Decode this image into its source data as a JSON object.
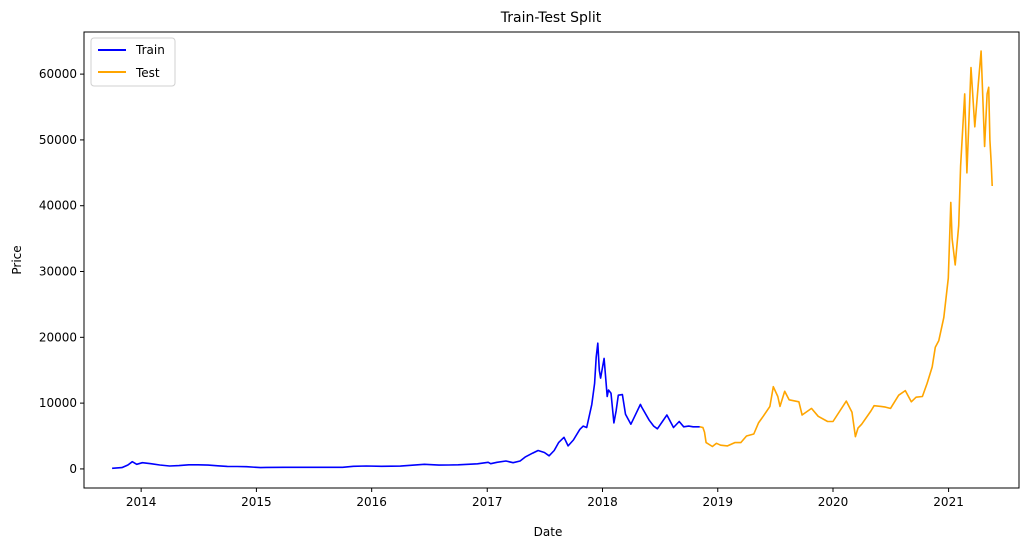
{
  "chart_data": {
    "type": "line",
    "title": "Train-Test Split",
    "xlabel": "Date",
    "ylabel": "Price",
    "xlim": [
      "2013-07-04",
      "2021-08-12"
    ],
    "ylim": [
      -2900,
      66400
    ],
    "x_ticks": [
      "2014",
      "2015",
      "2016",
      "2017",
      "2018",
      "2019",
      "2020",
      "2021"
    ],
    "y_ticks": [
      0,
      10000,
      20000,
      30000,
      40000,
      50000,
      60000
    ],
    "grid": false,
    "legend": "top-left",
    "series": [
      {
        "name": "Train",
        "color": "#0000ff",
        "x": [
          "2013-10-01",
          "2013-11-01",
          "2013-11-20",
          "2013-12-04",
          "2013-12-18",
          "2014-01-05",
          "2014-02-01",
          "2014-03-01",
          "2014-04-01",
          "2014-05-01",
          "2014-06-01",
          "2014-07-01",
          "2014-08-01",
          "2014-09-01",
          "2014-10-01",
          "2014-11-01",
          "2014-12-01",
          "2015-01-14",
          "2015-02-01",
          "2015-04-01",
          "2015-06-01",
          "2015-08-01",
          "2015-10-01",
          "2015-11-04",
          "2015-12-15",
          "2016-02-01",
          "2016-04-01",
          "2016-06-16",
          "2016-07-01",
          "2016-08-01",
          "2016-09-01",
          "2016-10-01",
          "2016-11-01",
          "2016-12-01",
          "2017-01-04",
          "2017-01-12",
          "2017-02-01",
          "2017-03-01",
          "2017-03-24",
          "2017-04-15",
          "2017-05-01",
          "2017-05-25",
          "2017-06-11",
          "2017-07-01",
          "2017-07-16",
          "2017-08-01",
          "2017-08-15",
          "2017-09-01",
          "2017-09-14",
          "2017-10-01",
          "2017-10-21",
          "2017-11-01",
          "2017-11-12",
          "2017-11-28",
          "2017-12-07",
          "2017-12-12",
          "2017-12-17",
          "2017-12-22",
          "2017-12-26",
          "2018-01-06",
          "2018-01-16",
          "2018-01-20",
          "2018-01-28",
          "2018-02-06",
          "2018-02-13",
          "2018-02-20",
          "2018-03-05",
          "2018-03-15",
          "2018-04-01",
          "2018-04-13",
          "2018-05-01",
          "2018-05-05",
          "2018-05-29",
          "2018-06-12",
          "2018-06-24",
          "2018-07-24",
          "2018-08-14",
          "2018-09-01",
          "2018-09-15",
          "2018-10-01",
          "2018-10-15",
          "2018-11-05"
        ],
        "values": [
          100,
          200,
          600,
          1100,
          700,
          950,
          800,
          600,
          450,
          500,
          620,
          620,
          580,
          480,
          380,
          370,
          330,
          200,
          230,
          250,
          240,
          250,
          240,
          400,
          450,
          400,
          430,
          700,
          650,
          580,
          600,
          620,
          700,
          780,
          1000,
          800,
          1000,
          1200,
          950,
          1200,
          1800,
          2400,
          2800,
          2500,
          2000,
          2800,
          4000,
          4800,
          3500,
          4400,
          6000,
          6500,
          6300,
          9800,
          13000,
          17000,
          19100,
          15000,
          13800,
          16800,
          11000,
          12000,
          11500,
          7000,
          8800,
          11200,
          11300,
          8300,
          6800,
          8000,
          9800,
          9400,
          7400,
          6500,
          6100,
          8200,
          6300,
          7200,
          6400,
          6500,
          6400,
          6400
        ]
      },
      {
        "name": "Test",
        "color": "#ffa500",
        "x": [
          "2018-11-05",
          "2018-11-15",
          "2018-11-20",
          "2018-11-25",
          "2018-12-15",
          "2018-12-28",
          "2019-01-10",
          "2019-02-01",
          "2019-02-24",
          "2019-03-15",
          "2019-04-02",
          "2019-04-25",
          "2019-05-10",
          "2019-05-25",
          "2019-06-15",
          "2019-06-26",
          "2019-07-10",
          "2019-07-17",
          "2019-08-01",
          "2019-08-15",
          "2019-09-15",
          "2019-09-25",
          "2019-10-25",
          "2019-11-15",
          "2019-12-15",
          "2020-01-01",
          "2020-02-12",
          "2020-03-01",
          "2020-03-12",
          "2020-03-20",
          "2020-04-01",
          "2020-04-30",
          "2020-05-10",
          "2020-06-01",
          "2020-06-15",
          "2020-07-01",
          "2020-07-27",
          "2020-08-17",
          "2020-09-05",
          "2020-09-20",
          "2020-10-10",
          "2020-10-25",
          "2020-11-10",
          "2020-11-20",
          "2020-12-01",
          "2020-12-17",
          "2020-12-31",
          "2021-01-08",
          "2021-01-12",
          "2021-01-22",
          "2021-02-02",
          "2021-02-08",
          "2021-02-21",
          "2021-02-28",
          "2021-03-13",
          "2021-03-25",
          "2021-04-05",
          "2021-04-14",
          "2021-04-25",
          "2021-05-03",
          "2021-05-08",
          "2021-05-12",
          "2021-05-16",
          "2021-05-19"
        ],
        "values": [
          6400,
          6300,
          5600,
          4000,
          3400,
          3900,
          3600,
          3500,
          4000,
          4000,
          5000,
          5300,
          7000,
          8000,
          9500,
          12500,
          11000,
          9500,
          11800,
          10500,
          10200,
          8200,
          9200,
          8000,
          7200,
          7200,
          10300,
          8600,
          4900,
          6200,
          6800,
          8800,
          9600,
          9500,
          9400,
          9200,
          11200,
          11900,
          10200,
          10900,
          11000,
          13000,
          15500,
          18500,
          19500,
          23000,
          29000,
          40500,
          35000,
          31000,
          37000,
          46000,
          57000,
          45000,
          61000,
          52000,
          58500,
          63500,
          49000,
          57000,
          58000,
          50000,
          46500,
          43000
        ]
      }
    ]
  }
}
